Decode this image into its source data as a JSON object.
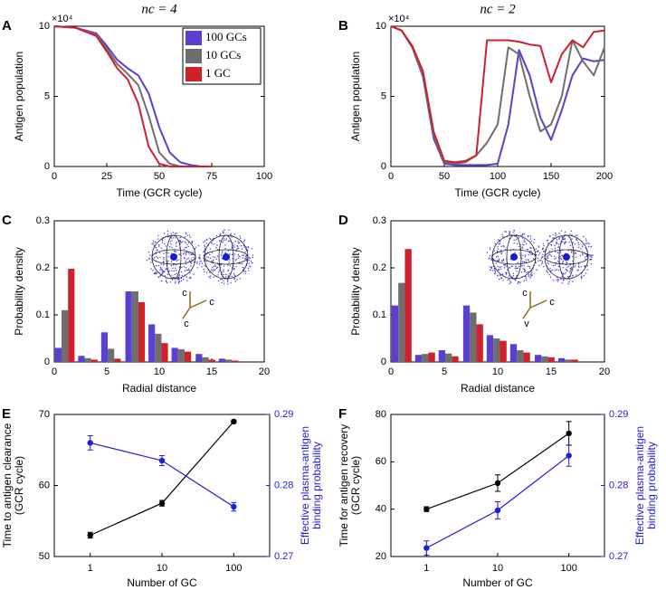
{
  "chart_data": [
    {
      "type": "line",
      "panel": "A",
      "title": "nc = 4",
      "x_label": "Time (GCR cycle)",
      "y_label": "Antigen population",
      "y_multiplier": "×10⁴",
      "x": [
        0,
        10,
        20,
        25,
        30,
        35,
        40,
        45,
        50,
        55,
        60,
        65,
        70,
        75
      ],
      "xlim": [
        0,
        100
      ],
      "xticks": [
        0,
        25,
        50,
        75,
        100
      ],
      "ylim": [
        0,
        10
      ],
      "yticks": [
        0,
        5,
        10
      ],
      "legend": "upper right",
      "series": [
        {
          "name": "100 GCs",
          "color": "#5b3fd3",
          "values": [
            10,
            9.9,
            9.5,
            8.6,
            7.6,
            7.0,
            6.5,
            5.2,
            2.8,
            1.0,
            0.3,
            0.1,
            0,
            0
          ]
        },
        {
          "name": "10 GCs",
          "color": "#6e6e6e",
          "values": [
            10,
            9.9,
            9.4,
            8.4,
            7.3,
            6.6,
            5.8,
            3.6,
            1.0,
            0.2,
            0,
            0,
            0,
            0
          ]
        },
        {
          "name": "1 GC",
          "color": "#d0202b",
          "values": [
            10,
            9.9,
            9.3,
            8.2,
            7.0,
            6.2,
            4.5,
            1.4,
            0.2,
            0,
            0,
            0,
            0,
            0
          ]
        }
      ]
    },
    {
      "type": "line",
      "panel": "B",
      "title": "nc = 2",
      "x_label": "Time (GCR cycle)",
      "y_label": "Antigen population",
      "y_multiplier": "×10⁴",
      "x": [
        0,
        10,
        20,
        30,
        40,
        50,
        60,
        70,
        80,
        90,
        100,
        110,
        120,
        130,
        140,
        150,
        160,
        170,
        180,
        190,
        200
      ],
      "xlim": [
        0,
        200
      ],
      "xticks": [
        0,
        50,
        100,
        150,
        200
      ],
      "ylim": [
        0,
        10
      ],
      "yticks": [
        0,
        5,
        10
      ],
      "series": [
        {
          "color": "#5b3fd3",
          "values": [
            10,
            9.7,
            8.5,
            6.4,
            2.0,
            0.2,
            0.1,
            0.1,
            0.1,
            0.1,
            0.2,
            3.0,
            8.3,
            6.5,
            3.5,
            1.9,
            4.0,
            6.5,
            7.7,
            7.5,
            7.6
          ]
        },
        {
          "color": "#6e6e6e",
          "values": [
            10,
            9.7,
            8.5,
            6.5,
            2.2,
            0.3,
            0.2,
            0.3,
            0.8,
            1.7,
            3.0,
            8.5,
            8.0,
            5.0,
            2.5,
            3.0,
            5.0,
            9.0,
            7.5,
            6.5,
            8.5
          ]
        },
        {
          "color": "#d0202b",
          "values": [
            10,
            9.7,
            8.6,
            6.8,
            2.5,
            0.4,
            0.3,
            0.4,
            0.8,
            9.0,
            9.0,
            9.0,
            8.9,
            8.7,
            8.6,
            6.0,
            8.0,
            9.0,
            8.5,
            9.6,
            9.7
          ]
        }
      ]
    },
    {
      "type": "bar",
      "panel": "C",
      "x_label": "Radial distance",
      "y_label": "Probability density",
      "inset_labels": [
        "c",
        "c",
        "c"
      ],
      "x": [
        1,
        3.2,
        5.4,
        7.7,
        9.9,
        12.1,
        14.4,
        16.6
      ],
      "xlim": [
        0,
        20
      ],
      "xticks": [
        0,
        5,
        10,
        15,
        20
      ],
      "ylim": [
        0,
        0.3
      ],
      "yticks": [
        0,
        0.1,
        0.2,
        0.3
      ],
      "series": [
        {
          "color": "#5b3fd3",
          "values": [
            0.03,
            0.013,
            0.063,
            0.15,
            0.08,
            0.03,
            0.017,
            0.007
          ]
        },
        {
          "color": "#6e6e6e",
          "values": [
            0.11,
            0.008,
            0.028,
            0.15,
            0.06,
            0.027,
            0.01,
            0.005
          ]
        },
        {
          "color": "#d0202b",
          "values": [
            0.198,
            0.005,
            0.007,
            0.127,
            0.04,
            0.022,
            0.005,
            0.003
          ]
        }
      ]
    },
    {
      "type": "bar",
      "panel": "D",
      "x_label": "Radial distance",
      "y_label": "Probability density",
      "inset_labels": [
        "c",
        "c",
        "v"
      ],
      "x": [
        1,
        3.2,
        5.4,
        7.7,
        9.9,
        12.1,
        14.4,
        16.6
      ],
      "xlim": [
        0,
        20
      ],
      "xticks": [
        0,
        5,
        10,
        15,
        20
      ],
      "ylim": [
        0,
        0.3
      ],
      "yticks": [
        0,
        0.1,
        0.2,
        0.3
      ],
      "series": [
        {
          "color": "#5b3fd3",
          "values": [
            0.12,
            0.015,
            0.025,
            0.12,
            0.057,
            0.038,
            0.015,
            0.008
          ]
        },
        {
          "color": "#6e6e6e",
          "values": [
            0.168,
            0.017,
            0.018,
            0.105,
            0.05,
            0.025,
            0.012,
            0.005
          ]
        },
        {
          "color": "#d0202b",
          "values": [
            0.24,
            0.02,
            0.012,
            0.08,
            0.045,
            0.02,
            0.01,
            0.005
          ]
        }
      ]
    },
    {
      "type": "errorline",
      "panel": "E",
      "x_label": "Number of GC",
      "y_label": [
        "Time to antigen clearance",
        "(GCR cycle)"
      ],
      "y2_label": [
        "Effective plasma-antigen",
        "binding probability"
      ],
      "y2_color": "#1d1ddf",
      "categories": [
        "1",
        "10",
        "100"
      ],
      "ylim": [
        50,
        70
      ],
      "yticks": [
        50,
        60,
        70
      ],
      "y2lim": [
        0.27,
        0.29
      ],
      "y2ticks": [
        0.27,
        0.28,
        0.29
      ],
      "series": [
        {
          "color": "#000000",
          "values": [
            53,
            57.5,
            69
          ],
          "errors": [
            0.4,
            0.4,
            0.2
          ]
        },
        {
          "color": "#1d1ddf",
          "axis": "y2",
          "values": [
            0.286,
            0.2835,
            0.277
          ],
          "errors": [
            0.001,
            0.0007,
            0.0006
          ]
        }
      ]
    },
    {
      "type": "errorline",
      "panel": "F",
      "x_label": "Number of GC",
      "y_label": [
        "Time for antigen recovery",
        "(GCR cycle)"
      ],
      "y2_label": [
        "Effective plasma-antigen",
        "binding probability"
      ],
      "y2_color": "#1d1ddf",
      "categories": [
        "1",
        "10",
        "100"
      ],
      "ylim": [
        20,
        80
      ],
      "yticks": [
        20,
        40,
        60,
        80
      ],
      "y2lim": [
        0.27,
        0.29
      ],
      "y2ticks": [
        0.27,
        0.28,
        0.29
      ],
      "series": [
        {
          "color": "#000000",
          "values": [
            40,
            51,
            72
          ],
          "errors": [
            1,
            3.5,
            5
          ]
        },
        {
          "color": "#1d1ddf",
          "axis": "y2",
          "values": [
            0.2712,
            0.2765,
            0.2842
          ],
          "errors": [
            0.001,
            0.0012,
            0.0015
          ]
        }
      ]
    }
  ]
}
